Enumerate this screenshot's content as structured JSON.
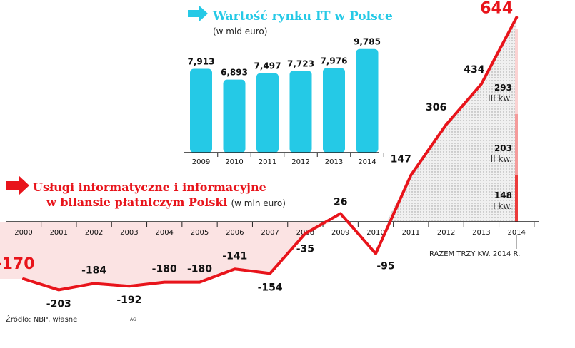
{
  "colors": {
    "accent_red": "#e8141b",
    "accent_cyan": "#25c9e6",
    "negative_fill": "#fbe3e3",
    "positive_fill": "#dedede",
    "axis": "#222222",
    "text": "#111111",
    "q3_band": "#fbd2d2",
    "q2_band": "#f59b9b",
    "q1_band": "#ec3b3b"
  },
  "chart_data": [
    {
      "type": "bar",
      "title": "Wartość rynku IT w Polsce",
      "subtitle": "(w mld euro)",
      "categories": [
        "2009",
        "2010",
        "2011",
        "2012",
        "2013",
        "2014"
      ],
      "values": [
        7.913,
        6.893,
        7.497,
        7.723,
        7.976,
        9.785
      ],
      "value_labels": [
        "7,913",
        "6,893",
        "7,497",
        "7,723",
        "7,976",
        "9,785"
      ],
      "ylim": [
        0,
        10
      ],
      "color": "#25c9e6"
    },
    {
      "type": "line",
      "title_line1": "Usługi informatyczne i informacyjne",
      "title_line2": "w bilansie płatniczym Polski",
      "subtitle": "(w mln euro)",
      "x": [
        "2000",
        "2001",
        "2002",
        "2003",
        "2004",
        "2005",
        "2006",
        "2007",
        "2008",
        "2009",
        "2010",
        "2011",
        "2012",
        "2013",
        "2014"
      ],
      "values": [
        -170,
        -203,
        -184,
        -192,
        -180,
        -180,
        -141,
        -154,
        -35,
        26,
        -95,
        147,
        306,
        434,
        644
      ],
      "value_labels": [
        "-170",
        "-203",
        "-184",
        "-192",
        "-180",
        "-180",
        "-141",
        "-154",
        "-35",
        "26",
        "-95",
        "147",
        "306",
        "434",
        "644"
      ],
      "ylim": [
        -210,
        650
      ],
      "color": "#e8141b",
      "breakdown_2014": {
        "note": "RAZEM TRZY KW. 2014 R.",
        "quarters": [
          {
            "value": "148",
            "label": "I kw."
          },
          {
            "value": "203",
            "label": "II kw."
          },
          {
            "value": "293",
            "label": "III kw."
          }
        ]
      }
    }
  ],
  "footer": {
    "source": "Źródło: NBP, własne",
    "credit": "AG"
  }
}
